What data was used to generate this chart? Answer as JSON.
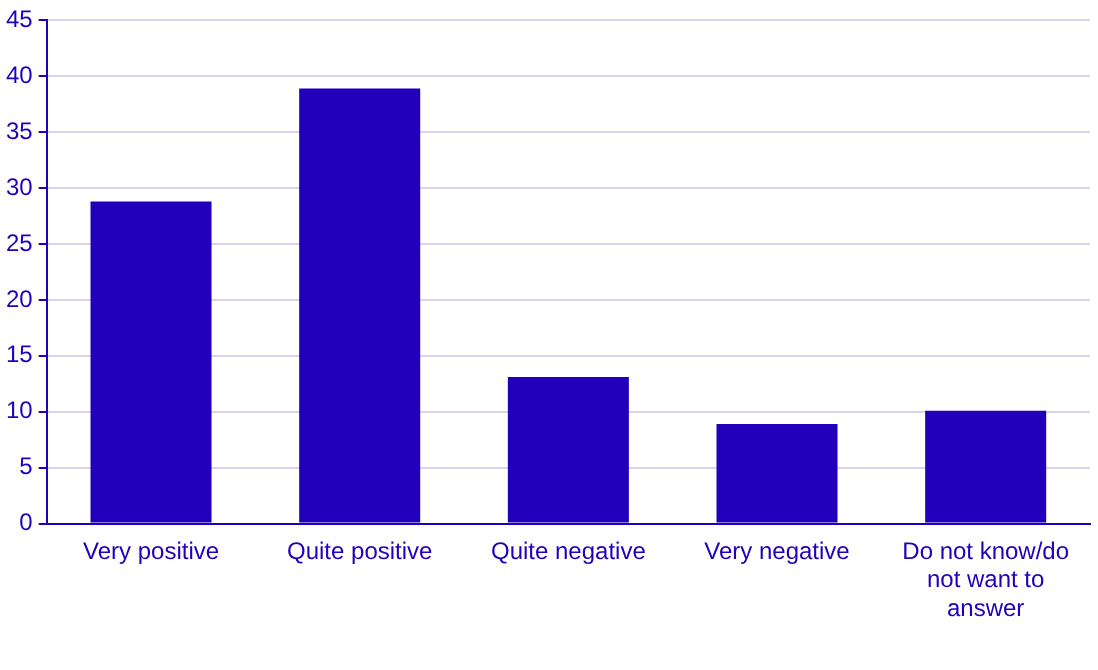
{
  "chart_data": {
    "type": "bar",
    "categories": [
      "Very positive",
      "Quite positive",
      "Quite negative",
      "Very negative",
      "Do not know/do not want to answer"
    ],
    "values": [
      28.8,
      38.9,
      13.1,
      8.9,
      10.1
    ],
    "color": "#2200bb",
    "ylim": [
      0,
      45
    ],
    "yticks": [
      0,
      5,
      10,
      15,
      20,
      25,
      30,
      35,
      40,
      45
    ],
    "grid": "y",
    "legend": false
  }
}
